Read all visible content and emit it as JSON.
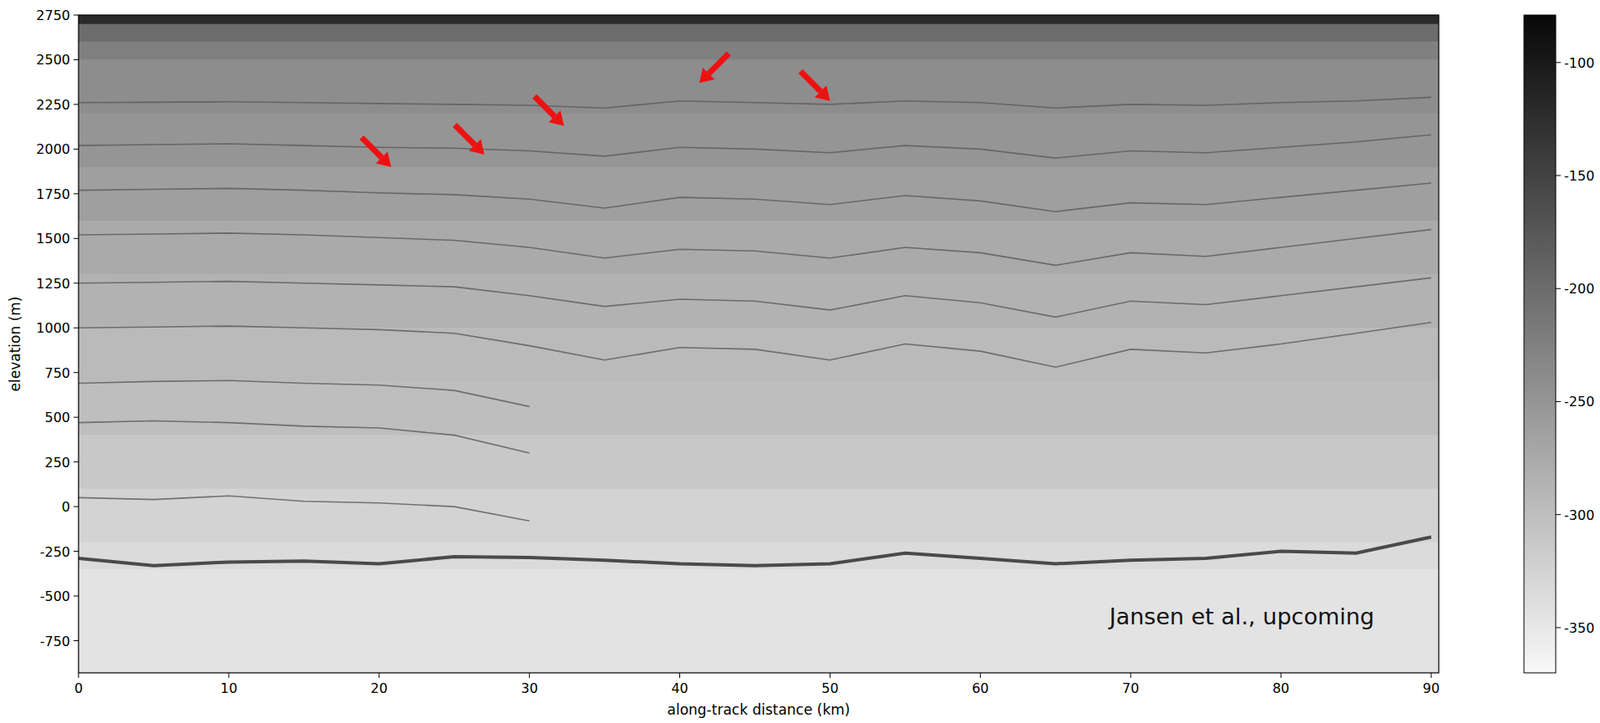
{
  "chart_data": {
    "type": "radargram",
    "xlabel": "along-track distance (km)",
    "ylabel": "elevation (m)",
    "xlim": [
      0,
      90.5
    ],
    "ylim": [
      -930,
      2750
    ],
    "xticks": [
      0,
      10,
      20,
      30,
      40,
      50,
      60,
      70,
      80,
      90
    ],
    "yticks": [
      -750,
      -500,
      -250,
      0,
      250,
      500,
      750,
      1000,
      1250,
      1500,
      1750,
      2000,
      2250,
      2500,
      2750
    ],
    "bands": {
      "elevation": [
        2750,
        2700,
        2600,
        2500,
        2200,
        1900,
        1600,
        1300,
        1000,
        700,
        400,
        100,
        -200,
        -350,
        -930
      ],
      "power": [
        -120,
        -200,
        -225,
        -240,
        -250,
        -262,
        -275,
        -285,
        -295,
        -300,
        -312,
        -325,
        -335,
        -345
      ]
    },
    "x": [
      0,
      5,
      10,
      15,
      20,
      25,
      30,
      35,
      40,
      45,
      50,
      55,
      60,
      65,
      70,
      75,
      80,
      85,
      90
    ],
    "layers": [
      {
        "values": [
          2260,
          2262,
          2265,
          2260,
          2255,
          2250,
          2245,
          2230,
          2270,
          2260,
          2250,
          2270,
          2260,
          2230,
          2250,
          2245,
          2260,
          2270,
          2290
        ]
      },
      {
        "values": [
          2020,
          2025,
          2030,
          2020,
          2010,
          2005,
          1990,
          1960,
          2010,
          2000,
          1980,
          2020,
          2000,
          1950,
          1990,
          1980,
          2010,
          2040,
          2080
        ]
      },
      {
        "values": [
          1770,
          1775,
          1780,
          1770,
          1755,
          1745,
          1720,
          1670,
          1730,
          1720,
          1690,
          1740,
          1710,
          1650,
          1700,
          1690,
          1730,
          1770,
          1810
        ]
      },
      {
        "values": [
          1520,
          1525,
          1530,
          1520,
          1505,
          1490,
          1450,
          1390,
          1440,
          1430,
          1390,
          1450,
          1420,
          1350,
          1420,
          1400,
          1450,
          1500,
          1550
        ]
      },
      {
        "values": [
          1250,
          1255,
          1260,
          1250,
          1240,
          1230,
          1180,
          1120,
          1160,
          1150,
          1100,
          1180,
          1140,
          1060,
          1150,
          1130,
          1180,
          1230,
          1280
        ]
      },
      {
        "values": [
          1000,
          1005,
          1010,
          1000,
          990,
          970,
          900,
          820,
          890,
          880,
          820,
          910,
          870,
          780,
          880,
          860,
          910,
          970,
          1030
        ]
      },
      {
        "values": [
          690,
          700,
          705,
          690,
          680,
          650,
          560,
          null,
          null,
          null,
          null,
          null,
          null,
          null,
          null,
          null,
          null,
          null,
          null
        ]
      },
      {
        "values": [
          470,
          480,
          470,
          450,
          440,
          400,
          300,
          null,
          null,
          null,
          null,
          null,
          null,
          null,
          null,
          null,
          null,
          null,
          null
        ]
      },
      {
        "values": [
          50,
          40,
          60,
          30,
          20,
          0,
          -80,
          null,
          null,
          null,
          null,
          null,
          null,
          null,
          null,
          null,
          null,
          null,
          null
        ]
      }
    ],
    "layer_color": "#5a5a5a",
    "bed": {
      "values": [
        -290,
        -330,
        -310,
        -305,
        -320,
        -280,
        -285,
        -300,
        -320,
        -330,
        -320,
        -260,
        -290,
        -320,
        -300,
        -290,
        -250,
        -260,
        -170
      ],
      "color": "#4a4a4a"
    },
    "colorbar": {
      "range": [
        -370,
        -79
      ],
      "ticks": [
        -350,
        -300,
        -250,
        -200,
        -150,
        -100
      ]
    },
    "arrows": [
      {
        "x": 20.8,
        "y": 1900,
        "direction": "down-right"
      },
      {
        "x": 27.0,
        "y": 1970,
        "direction": "down-right"
      },
      {
        "x": 32.3,
        "y": 2130,
        "direction": "down-right"
      },
      {
        "x": 41.3,
        "y": 2370,
        "direction": "down-left"
      },
      {
        "x": 50.0,
        "y": 2270,
        "direction": "down-right"
      }
    ],
    "annotations": [
      {
        "text": "Jansen et al., upcoming",
        "x": 77.4,
        "y": -610
      }
    ]
  }
}
